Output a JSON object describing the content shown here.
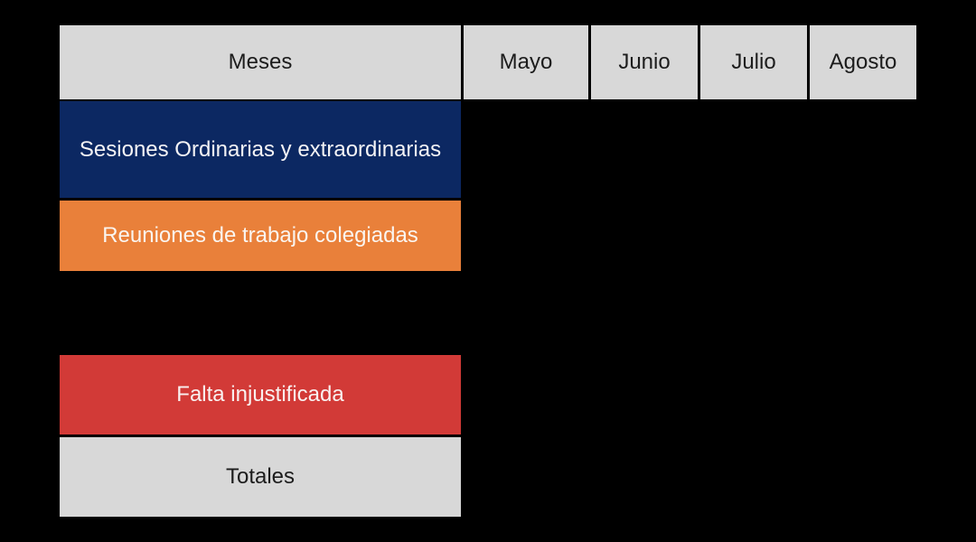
{
  "canvas": {
    "background_color": "#000000"
  },
  "table": {
    "header": {
      "bg": "#d8d8d8",
      "text_color": "#1c1c1c",
      "meses_label": "Meses",
      "months": [
        "Mayo",
        "Junio",
        "Julio",
        "Agosto"
      ]
    },
    "rows": [
      {
        "label": "Sesiones Ordinarias y extraordinarias",
        "bg": "#0c2862",
        "text_color": "#f4f3f5"
      },
      {
        "label": "Reuniones de trabajo colegiadas",
        "bg": "#e9803a",
        "text_color": "#faf5f0"
      },
      {
        "label": "Falta injustificada",
        "bg": "#d23a37",
        "text_color": "#f9f1f0"
      },
      {
        "label": "Totales",
        "bg": "#d8d8d8",
        "text_color": "#1c1c1c"
      }
    ]
  },
  "chart_data": {
    "type": "table",
    "columns": [
      "Meses",
      "Mayo",
      "Junio",
      "Julio",
      "Agosto"
    ],
    "rows": [
      {
        "label": "Sesiones Ordinarias y extraordinarias",
        "values": [
          "",
          "",
          "",
          ""
        ]
      },
      {
        "label": "Reuniones de trabajo colegiadas",
        "values": [
          "",
          "",
          "",
          ""
        ]
      },
      {
        "label": "Falta injustificada",
        "values": [
          "",
          "",
          "",
          ""
        ]
      },
      {
        "label": "Totales",
        "values": [
          "",
          "",
          "",
          ""
        ]
      }
    ],
    "layout": {
      "grid": "off",
      "empty_data_cells": true,
      "background": "#000000"
    }
  }
}
